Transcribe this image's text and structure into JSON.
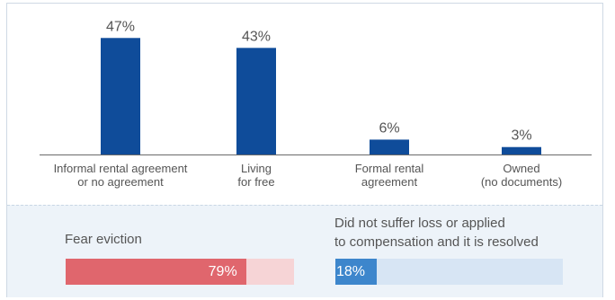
{
  "chart_data": {
    "type": "bar",
    "categories": [
      [
        "Informal rental agreement",
        "or no agreement"
      ],
      [
        "Living",
        "for free"
      ],
      [
        "Formal rental",
        "agreement"
      ],
      [
        "Owned",
        "(no documents)"
      ]
    ],
    "values": [
      47,
      43,
      6,
      3
    ],
    "value_labels": [
      "47%",
      "43%",
      "6%",
      "3%"
    ],
    "ylim": [
      0,
      50
    ],
    "grid": false,
    "bar_color": "#0f4c9a",
    "axis_color": "#6a6a6a"
  },
  "stats": [
    {
      "label_lines": [
        "Fear eviction"
      ],
      "value": 79,
      "value_label": "79%",
      "fill_color": "#e0666d",
      "track_color": "#f6d4d6"
    },
    {
      "label_lines": [
        "Did not suffer loss or applied",
        "to compensation and it is resolved"
      ],
      "value": 18,
      "value_label": "18%",
      "fill_color": "#3d86cc",
      "track_color": "#d7e5f4"
    }
  ]
}
